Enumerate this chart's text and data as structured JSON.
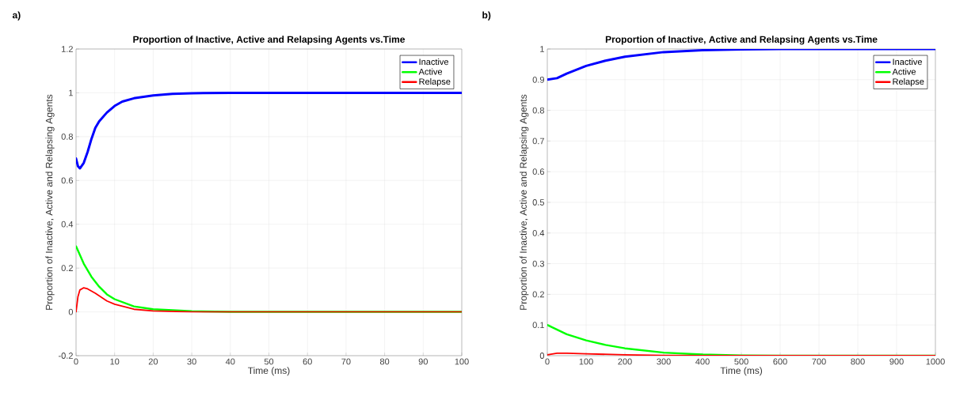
{
  "chart_data": [
    {
      "type": "line",
      "title": "Proportion of Inactive, Active and Relapsing Agents vs.Time",
      "xlabel": "Time (ms)",
      "ylabel": "Proportion of Inactive, Active and Relapsing Agents",
      "annotations": [
        "a)"
      ],
      "xlim": [
        0,
        100
      ],
      "ylim": [
        -0.2,
        1.2
      ],
      "xticks": [
        0,
        10,
        20,
        30,
        40,
        50,
        60,
        70,
        80,
        90,
        100
      ],
      "yticks": [
        -0.2,
        0,
        0.2,
        0.4,
        0.6,
        0.8,
        1,
        1.2
      ],
      "grid": true,
      "legend": "top right",
      "marker": "none",
      "line_style": "solid",
      "series": [
        {
          "name": "Inactive",
          "color": "#0000ff",
          "x": [
            0,
            0.5,
            1,
            2,
            3,
            4,
            5,
            6,
            8,
            10,
            12,
            15,
            20,
            25,
            30,
            40,
            100
          ],
          "values": [
            0.7,
            0.665,
            0.655,
            0.68,
            0.73,
            0.79,
            0.84,
            0.87,
            0.91,
            0.94,
            0.96,
            0.975,
            0.988,
            0.995,
            0.998,
            1,
            1
          ]
        },
        {
          "name": "Active",
          "color": "#00ff00",
          "x": [
            0,
            2,
            4,
            6,
            8,
            10,
            15,
            20,
            30,
            40,
            100
          ],
          "values": [
            0.3,
            0.22,
            0.16,
            0.115,
            0.08,
            0.058,
            0.025,
            0.012,
            0.003,
            0,
            0
          ]
        },
        {
          "name": "Relapse",
          "color": "#ff0000",
          "x": [
            0,
            0.5,
            1,
            2,
            3,
            5,
            8,
            10,
            15,
            20,
            30,
            100
          ],
          "values": [
            0,
            0.07,
            0.1,
            0.11,
            0.105,
            0.085,
            0.05,
            0.035,
            0.012,
            0.004,
            0,
            0
          ]
        }
      ]
    },
    {
      "type": "line",
      "title": "Proportion of Inactive, Active and Relapsing Agents vs.Time",
      "xlabel": "Time (ms)",
      "ylabel": "Proportion of Inactive, Active and Relapsing Agents",
      "annotations": [
        "b)"
      ],
      "xlim": [
        0,
        1000
      ],
      "ylim": [
        0,
        1
      ],
      "xticks": [
        0,
        100,
        200,
        300,
        400,
        500,
        600,
        700,
        800,
        900,
        1000
      ],
      "yticks": [
        0,
        0.1,
        0.2,
        0.3,
        0.4,
        0.5,
        0.6,
        0.7,
        0.8,
        0.9,
        1
      ],
      "grid": true,
      "legend": "top right",
      "marker": "none",
      "line_style": "solid",
      "series": [
        {
          "name": "Inactive",
          "color": "#0000ff",
          "x": [
            0,
            25,
            50,
            100,
            150,
            200,
            300,
            400,
            500,
            600,
            1000
          ],
          "values": [
            0.9,
            0.905,
            0.92,
            0.945,
            0.962,
            0.975,
            0.99,
            0.996,
            0.999,
            1,
            1
          ]
        },
        {
          "name": "Active",
          "color": "#00ff00",
          "x": [
            0,
            50,
            100,
            150,
            200,
            300,
            400,
            500,
            600,
            1000
          ],
          "values": [
            0.1,
            0.07,
            0.05,
            0.035,
            0.024,
            0.01,
            0.004,
            0.001,
            0,
            0
          ]
        },
        {
          "name": "Relapse",
          "color": "#ff0000",
          "x": [
            0,
            25,
            50,
            100,
            200,
            300,
            400,
            1000
          ],
          "values": [
            0.003,
            0.008,
            0.008,
            0.006,
            0.003,
            0.001,
            0,
            0
          ]
        }
      ]
    }
  ]
}
